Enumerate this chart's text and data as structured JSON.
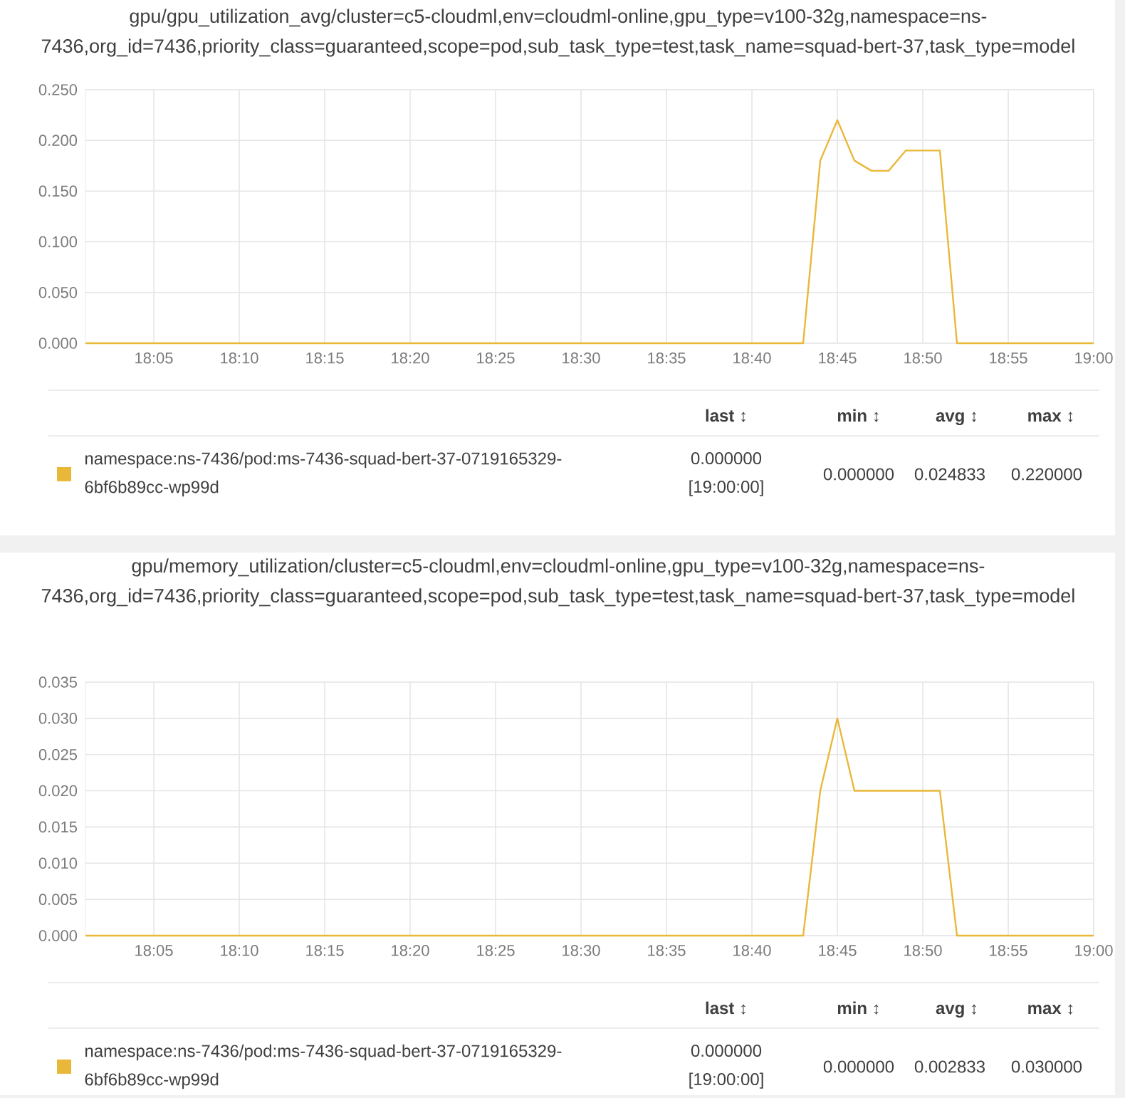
{
  "chart_data": [
    {
      "type": "line",
      "title": "gpu/gpu_utilization_avg/cluster=c5-cloudml,env=cloudml-online,gpu_type=v100-32g,namespace=ns-7436,org_id=7436,priority_class=guaranteed,scope=pod,sub_task_type=test,task_name=squad-bert-37,task_type=model",
      "x": [
        18.016667,
        18.716667,
        18.733333,
        18.75,
        18.766667,
        18.783333,
        18.8,
        18.816667,
        18.833333,
        18.85,
        18.866667,
        19.0
      ],
      "series": [
        {
          "name": "namespace:ns-7436/pod:ms-7436-squad-bert-37-0719165329-6bf6b89cc-wp99d",
          "color": "#eab839",
          "values": [
            0,
            0,
            0.18,
            0.22,
            0.18,
            0.17,
            0.17,
            0.19,
            0.19,
            0.19,
            0,
            0
          ]
        }
      ],
      "xlim": [
        18.016667,
        19.0
      ],
      "xticks": [
        {
          "value": 18.083333,
          "label": "18:05"
        },
        {
          "value": 18.166667,
          "label": "18:10"
        },
        {
          "value": 18.25,
          "label": "18:15"
        },
        {
          "value": 18.333333,
          "label": "18:20"
        },
        {
          "value": 18.416667,
          "label": "18:25"
        },
        {
          "value": 18.5,
          "label": "18:30"
        },
        {
          "value": 18.583333,
          "label": "18:35"
        },
        {
          "value": 18.666667,
          "label": "18:40"
        },
        {
          "value": 18.75,
          "label": "18:45"
        },
        {
          "value": 18.833333,
          "label": "18:50"
        },
        {
          "value": 18.916667,
          "label": "18:55"
        },
        {
          "value": 19.0,
          "label": "19:00"
        }
      ],
      "ylim": [
        0,
        0.25
      ],
      "yticks": [
        {
          "value": 0,
          "label": "0.000"
        },
        {
          "value": 0.05,
          "label": "0.050"
        },
        {
          "value": 0.1,
          "label": "0.100"
        },
        {
          "value": 0.15,
          "label": "0.150"
        },
        {
          "value": 0.2,
          "label": "0.200"
        },
        {
          "value": 0.25,
          "label": "0.250"
        }
      ],
      "grid": true,
      "legend": "bottom",
      "annotations": [
        "**last** ↕",
        "**min** ↕",
        "**avg** ↕",
        "**max** ↕",
        "0.000000",
        "[19:00:00]",
        "0.000000",
        "0.024833",
        "0.220000"
      ]
    },
    {
      "type": "line",
      "title": "gpu/memory_utilization/cluster=c5-cloudml,env=cloudml-online,gpu_type=v100-32g,namespace=ns-7436,org_id=7436,priority_class=guaranteed,scope=pod,sub_task_type=test,task_name=squad-bert-37,task_type=model",
      "x": [
        18.016667,
        18.716667,
        18.733333,
        18.75,
        18.766667,
        18.783333,
        18.8,
        18.816667,
        18.833333,
        18.85,
        18.866667,
        19.0
      ],
      "series": [
        {
          "name": "namespace:ns-7436/pod:ms-7436-squad-bert-37-0719165329-6bf6b89cc-wp99d",
          "color": "#eab839",
          "values": [
            0,
            0,
            0.02,
            0.03,
            0.02,
            0.02,
            0.02,
            0.02,
            0.02,
            0.02,
            0,
            0
          ]
        }
      ],
      "xlim": [
        18.016667,
        19.0
      ],
      "xticks": [
        {
          "value": 18.083333,
          "label": "18:05"
        },
        {
          "value": 18.166667,
          "label": "18:10"
        },
        {
          "value": 18.25,
          "label": "18:15"
        },
        {
          "value": 18.333333,
          "label": "18:20"
        },
        {
          "value": 18.416667,
          "label": "18:25"
        },
        {
          "value": 18.5,
          "label": "18:30"
        },
        {
          "value": 18.583333,
          "label": "18:35"
        },
        {
          "value": 18.666667,
          "label": "18:40"
        },
        {
          "value": 18.75,
          "label": "18:45"
        },
        {
          "value": 18.833333,
          "label": "18:50"
        },
        {
          "value": 18.916667,
          "label": "18:55"
        },
        {
          "value": 19.0,
          "label": "19:00"
        }
      ],
      "ylim": [
        0,
        0.035
      ],
      "yticks": [
        {
          "value": 0,
          "label": "0.000"
        },
        {
          "value": 0.005,
          "label": "0.005"
        },
        {
          "value": 0.01,
          "label": "0.010"
        },
        {
          "value": 0.015,
          "label": "0.015"
        },
        {
          "value": 0.02,
          "label": "0.020"
        },
        {
          "value": 0.025,
          "label": "0.025"
        },
        {
          "value": 0.03,
          "label": "0.030"
        },
        {
          "value": 0.035,
          "label": "0.035"
        }
      ],
      "grid": true,
      "legend": "bottom",
      "annotations": [
        "**last** ↕",
        "**min** ↕",
        "**avg** ↕",
        "**max** ↕",
        "0.000000",
        "[19:00:00]",
        "0.000000",
        "0.002833",
        "0.030000"
      ]
    }
  ]
}
